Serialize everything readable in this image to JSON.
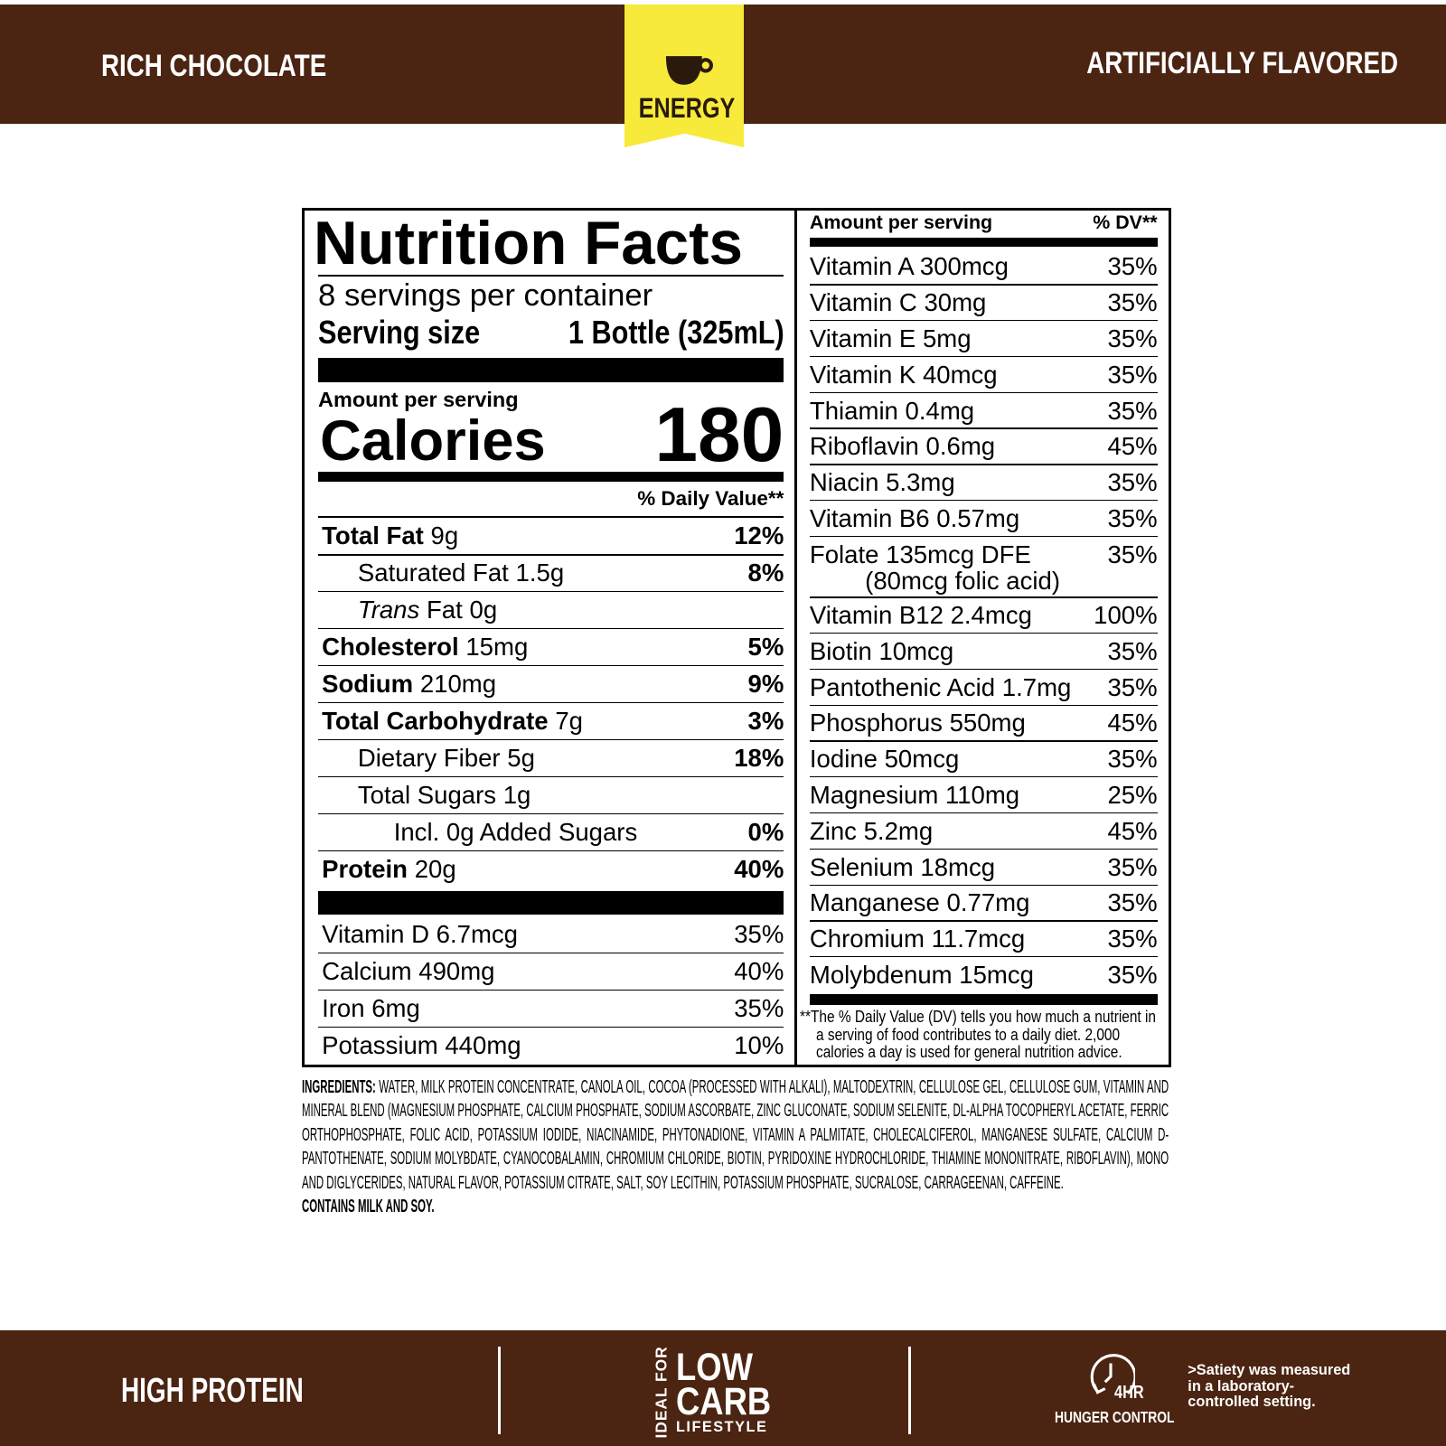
{
  "header": {
    "left": "RICH CHOCOLATE",
    "badge": "ENERGY",
    "right": "ARTIFICIALLY FLAVORED"
  },
  "nutrition_facts": {
    "title": "Nutrition Facts",
    "servings": "8 servings per container",
    "serving_size_label": "Serving size",
    "serving_size_value": "1 Bottle (325mL)",
    "amount_per_serving": "Amount per serving",
    "calories_label": "Calories",
    "calories_value": "180",
    "dv_header": "% Daily Value**",
    "nutrients": [
      {
        "name": "Total Fat",
        "amount": "9g",
        "dv": "12%",
        "sub": [
          {
            "name": "Saturated Fat",
            "amount": "1.5g",
            "dv": "8%"
          },
          {
            "name_italic": "Trans",
            "name": "Fat",
            "amount": "0g"
          }
        ]
      },
      {
        "name": "Cholesterol",
        "amount": "15mg",
        "dv": "5%"
      },
      {
        "name": "Sodium",
        "amount": "210mg",
        "dv": "9%"
      },
      {
        "name": "Total Carbohydrate",
        "amount": "7g",
        "dv": "3%",
        "sub": [
          {
            "name": "Dietary Fiber",
            "amount": "5g",
            "dv": "18%"
          },
          {
            "name": "Total Sugars",
            "amount": "1g",
            "sub": [
              {
                "name": "Incl. 0g Added Sugars",
                "dv": "0%"
              }
            ]
          }
        ]
      },
      {
        "name": "Protein",
        "amount": "20g",
        "dv": "40%"
      }
    ],
    "vitamins": [
      {
        "name": "Vitamin D 6.7mcg",
        "dv": "35%"
      },
      {
        "name": "Calcium 490mg",
        "dv": "40%"
      },
      {
        "name": "Iron 6mg",
        "dv": "35%"
      },
      {
        "name": "Potassium 440mg",
        "dv": "10%"
      }
    ],
    "right_header": {
      "amount": "Amount per serving",
      "dv": "% DV**"
    },
    "micronutrients": [
      {
        "name": "Vitamin A 300mcg",
        "dv": "35%"
      },
      {
        "name": "Vitamin C 30mg",
        "dv": "35%"
      },
      {
        "name": "Vitamin E 5mg",
        "dv": "35%"
      },
      {
        "name": "Vitamin K 40mcg",
        "dv": "35%"
      },
      {
        "name": "Thiamin 0.4mg",
        "dv": "35%"
      },
      {
        "name": "Riboflavin 0.6mg",
        "dv": "45%"
      },
      {
        "name": "Niacin 5.3mg",
        "dv": "35%"
      },
      {
        "name": "Vitamin B6 0.57mg",
        "dv": "35%"
      },
      {
        "name": "Folate 135mcg DFE",
        "note": "(80mcg folic acid)",
        "dv": "35%"
      },
      {
        "name": "Vitamin B12 2.4mcg",
        "dv": "100%"
      },
      {
        "name": "Biotin 10mcg",
        "dv": "35%"
      },
      {
        "name": "Pantothenic Acid 1.7mg",
        "dv": "35%"
      },
      {
        "name": "Phosphorus 550mg",
        "dv": "45%"
      },
      {
        "name": "Iodine 50mcg",
        "dv": "35%"
      },
      {
        "name": "Magnesium 110mg",
        "dv": "25%"
      },
      {
        "name": "Zinc 5.2mg",
        "dv": "45%"
      },
      {
        "name": "Selenium 18mcg",
        "dv": "35%"
      },
      {
        "name": "Manganese 0.77mg",
        "dv": "35%"
      },
      {
        "name": "Chromium 11.7mcg",
        "dv": "35%"
      },
      {
        "name": "Molybdenum 15mcg",
        "dv": "35%"
      }
    ],
    "footnote": "**The % Daily Value (DV) tells you how much a nutrient in a serving of food contributes to a daily diet. 2,000 calories a day is used for general nutrition advice."
  },
  "ingredients": {
    "label": "INGREDIENTS:",
    "text": "WATER, MILK PROTEIN CONCENTRATE, CANOLA OIL, COCOA (PROCESSED WITH ALKALI), MALTODEXTRIN, CELLULOSE GEL, CELLULOSE GUM, VITAMIN AND MINERAL BLEND (MAGNESIUM PHOSPHATE, CALCIUM PHOSPHATE, SODIUM ASCORBATE, ZINC GLUCONATE, SODIUM SELENITE, DL-ALPHA TOCOPHERYL ACETATE, FERRIC ORTHOPHOSPHATE, FOLIC ACID, POTASSIUM IODIDE, NIACINAMIDE, PHYTONADIONE, VITAMIN A PALMITATE, CHOLECALCIFEROL, MANGANESE SULFATE, CALCIUM D-PANTOTHENATE, SODIUM MOLYBDATE, CYANOCOBALAMIN, CHROMIUM CHLORIDE, BIOTIN, PYRIDOXINE HYDROCHLORIDE, THIAMINE MONONITRATE, RIBOFLAVIN), MONO AND DIGLYCERIDES, NATURAL FLAVOR, POTASSIUM CITRATE, SALT, SOY LECITHIN, POTASSIUM PHOSPHATE, SUCRALOSE, CARRAGEENAN, CAFFEINE.",
    "contains": "CONTAINS MILK AND SOY."
  },
  "footer": {
    "left": "HIGH PROTEIN",
    "middle": {
      "vertical": "IDEAL FOR",
      "line1": "LOW",
      "line2": "CARB",
      "line3": "LIFESTYLE"
    },
    "right": {
      "icon_text": "4HR",
      "label": "HUNGER CONTROL",
      "note": ">Satiety was measured in a laboratory-controlled setting."
    }
  }
}
